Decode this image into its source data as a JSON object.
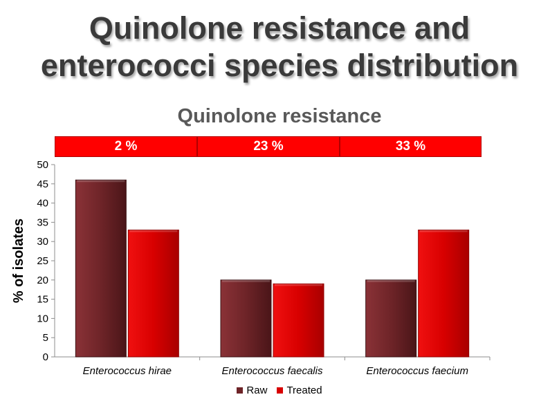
{
  "slide": {
    "title_line1": "Quinolone resistance and",
    "title_line2": "enterococci species distribution"
  },
  "resistance_row": [
    "2 %",
    "23 %",
    "33 %"
  ],
  "colors": {
    "raw": "#6e2428",
    "treated": "#d80000",
    "band": "#ff0000"
  },
  "chart_data": {
    "type": "bar",
    "title": "Quinolone resistance",
    "categories": [
      "Enterococcus hirae",
      "Enterococcus faecalis",
      "Enterococcus faecium"
    ],
    "series": [
      {
        "name": "Raw",
        "values": [
          46,
          20,
          20
        ]
      },
      {
        "name": "Treated",
        "values": [
          33,
          19,
          33
        ]
      }
    ],
    "ylabel": "% of isolates",
    "xlabel": "",
    "ylim": [
      0,
      50
    ],
    "yticks": [
      "0",
      "5",
      "10",
      "15",
      "20",
      "25",
      "30",
      "35",
      "40",
      "45",
      "50"
    ],
    "grid": false,
    "legend": "bottom"
  }
}
